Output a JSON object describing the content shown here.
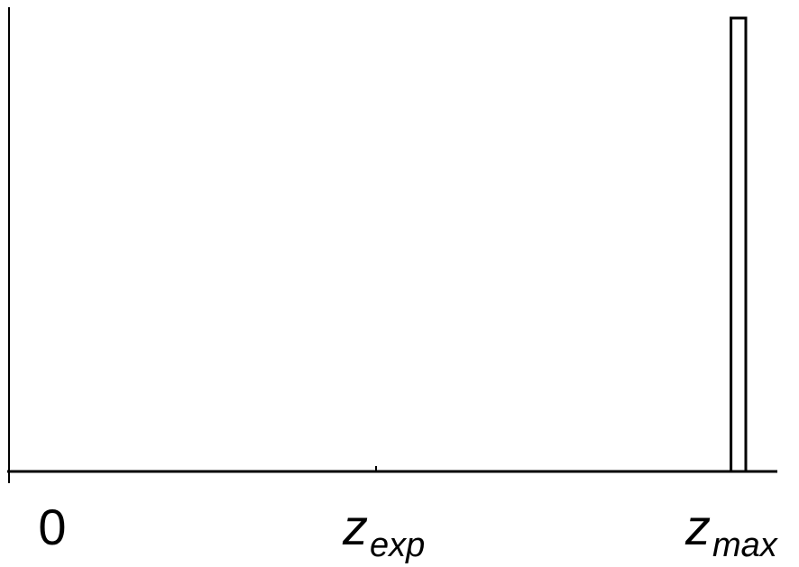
{
  "chart_data": {
    "type": "bar",
    "title": "",
    "xlabel": "",
    "ylabel": "",
    "ticks": [
      {
        "value": 0,
        "main": "0",
        "sub": ""
      },
      {
        "value": 0.5,
        "main": "z",
        "sub": "exp"
      },
      {
        "value": 1,
        "main": "z",
        "sub": "max"
      }
    ],
    "xlim": [
      0,
      1.04
    ],
    "ylim": [
      0,
      1.0
    ],
    "bars": [
      {
        "x_start": 0.98,
        "x_end": 1.0,
        "value": 1.0
      }
    ],
    "grid": false,
    "legend": "none",
    "colors": {
      "line": "#000000",
      "bar_fill": "#ffffff",
      "background": "#ffffff"
    }
  }
}
